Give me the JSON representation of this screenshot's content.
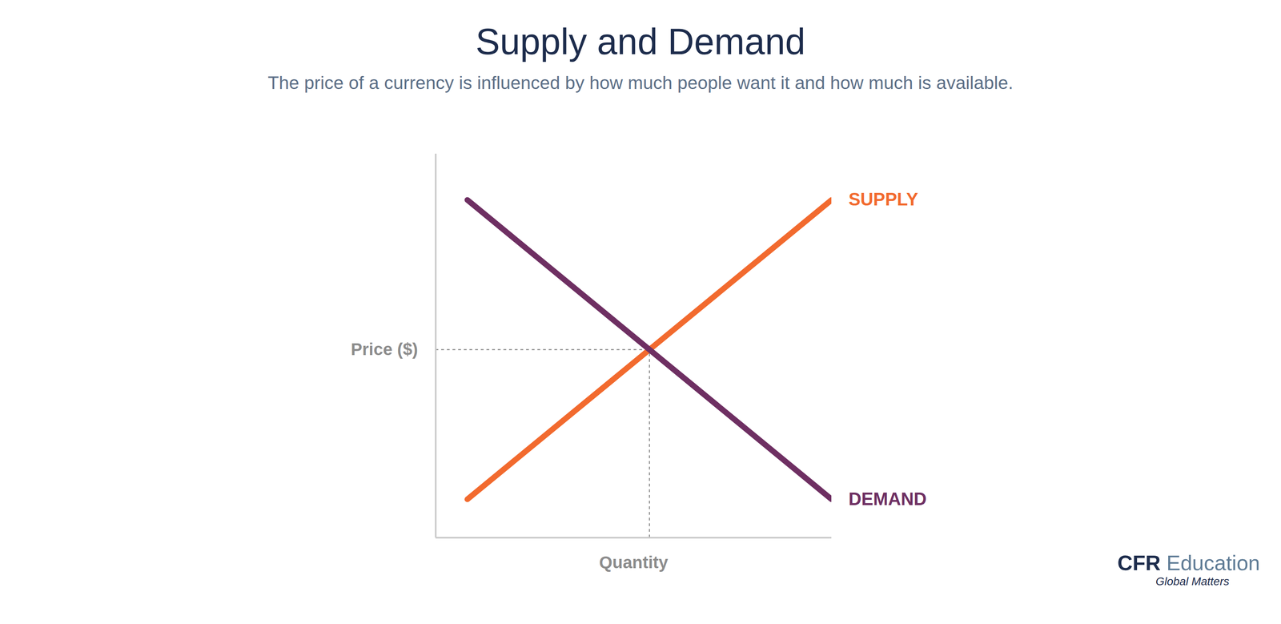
{
  "chart_data": {
    "type": "line",
    "title": "Supply and Demand",
    "subtitle": "The price of a currency is influenced by how much people want it and how much is available.",
    "x_label": "Quantity",
    "y_label": "Price ($)",
    "x": [
      8,
      100
    ],
    "series": [
      {
        "name": "SUPPLY",
        "color": "#f26a2e",
        "values": [
          10,
          88
        ]
      },
      {
        "name": "DEMAND",
        "color": "#6e2f62",
        "values": [
          88,
          10
        ]
      }
    ],
    "xlim": [
      0,
      100
    ],
    "ylim": [
      0,
      100
    ],
    "tick_labels": false,
    "equilibrium": {
      "x": 54,
      "y": 49
    },
    "credit": {
      "org": "CFR",
      "unit": "Education",
      "tagline": "Global Matters"
    }
  }
}
